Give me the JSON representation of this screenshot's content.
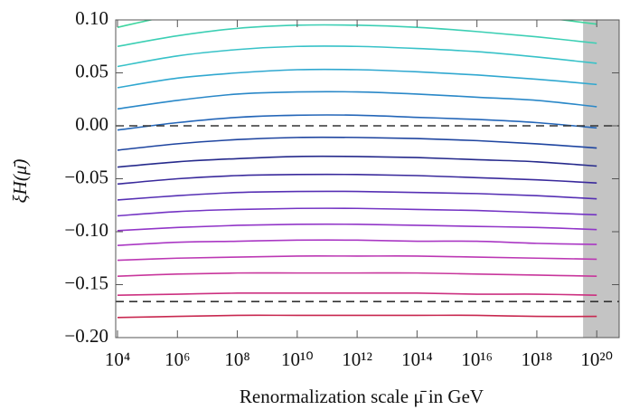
{
  "chart_data": {
    "type": "line",
    "xlabel": "Renormalization scale μ̄ in GeV",
    "ylabel": "ξH(μ̄)",
    "xscale": "log",
    "x": [
      10000.0,
      1000000.0,
      100000000.0,
      10000000000.0,
      1000000000000.0,
      100000000000000.0,
      1e+16,
      1e+18,
      1e+20
    ],
    "xlim": [
      8700,
      5.6e+20
    ],
    "xticks": [
      {
        "value": 10000.0,
        "label": "10⁴"
      },
      {
        "value": 1000000.0,
        "label": "10⁶"
      },
      {
        "value": 100000000.0,
        "label": "10⁸"
      },
      {
        "value": 10000000000.0,
        "label": "10¹⁰"
      },
      {
        "value": 1000000000000.0,
        "label": "10¹²"
      },
      {
        "value": 100000000000000.0,
        "label": "10¹⁴"
      },
      {
        "value": 1e+16,
        "label": "10¹⁶"
      },
      {
        "value": 1e+18,
        "label": "10¹⁸"
      },
      {
        "value": 1e+20,
        "label": "10²⁰"
      }
    ],
    "ylim": [
      -0.2,
      0.1
    ],
    "yticks": [
      {
        "value": 0.1,
        "label": "0.10"
      },
      {
        "value": 0.05,
        "label": "0.05"
      },
      {
        "value": 0,
        "label": "0.00"
      },
      {
        "value": -0.05,
        "label": "−0.05"
      },
      {
        "value": -0.1,
        "label": "−0.10"
      },
      {
        "value": -0.15,
        "label": "−0.15"
      },
      {
        "value": -0.2,
        "label": "−0.20"
      }
    ],
    "hlines": [
      0,
      -0.166
    ],
    "hline_color": "#333333",
    "band": [
      3.5e+19,
      5.6e+20
    ],
    "band_color": "#c4c4c4",
    "series": [
      {
        "color": "#3fd6a0",
        "values": [
          0.093,
          0.105,
          0.112,
          0.115,
          0.115,
          0.113,
          0.109,
          0.103,
          0.096
        ]
      },
      {
        "color": "#3ccfb4",
        "values": [
          0.075,
          0.085,
          0.092,
          0.095,
          0.095,
          0.093,
          0.089,
          0.084,
          0.078
        ]
      },
      {
        "color": "#38c2c8",
        "values": [
          0.056,
          0.066,
          0.072,
          0.075,
          0.075,
          0.073,
          0.07,
          0.065,
          0.059
        ]
      },
      {
        "color": "#30a8d0",
        "values": [
          0.036,
          0.045,
          0.05,
          0.053,
          0.053,
          0.051,
          0.048,
          0.044,
          0.039
        ]
      },
      {
        "color": "#2a88c8",
        "values": [
          0.016,
          0.024,
          0.03,
          0.032,
          0.032,
          0.03,
          0.027,
          0.024,
          0.018
        ]
      },
      {
        "color": "#2466b8",
        "values": [
          -0.004,
          0.003,
          0.008,
          0.01,
          0.01,
          0.008,
          0.006,
          0.003,
          -0.002
        ]
      },
      {
        "color": "#1f45a0",
        "values": [
          -0.023,
          -0.017,
          -0.013,
          -0.011,
          -0.011,
          -0.012,
          -0.014,
          -0.017,
          -0.021
        ]
      },
      {
        "color": "#262a8c",
        "values": [
          -0.039,
          -0.034,
          -0.031,
          -0.029,
          -0.029,
          -0.03,
          -0.032,
          -0.034,
          -0.038
        ]
      },
      {
        "color": "#3a2a9c",
        "values": [
          -0.055,
          -0.05,
          -0.047,
          -0.046,
          -0.046,
          -0.047,
          -0.049,
          -0.051,
          -0.054
        ]
      },
      {
        "color": "#5630b4",
        "values": [
          -0.07,
          -0.066,
          -0.063,
          -0.062,
          -0.062,
          -0.063,
          -0.064,
          -0.066,
          -0.069
        ]
      },
      {
        "color": "#7434c4",
        "values": [
          -0.085,
          -0.081,
          -0.079,
          -0.078,
          -0.078,
          -0.079,
          -0.08,
          -0.082,
          -0.084
        ]
      },
      {
        "color": "#9236c8",
        "values": [
          -0.099,
          -0.096,
          -0.094,
          -0.093,
          -0.093,
          -0.094,
          -0.095,
          -0.096,
          -0.098
        ]
      },
      {
        "color": "#aa38c4",
        "values": [
          -0.113,
          -0.11,
          -0.109,
          -0.108,
          -0.108,
          -0.109,
          -0.109,
          -0.111,
          -0.112
        ]
      },
      {
        "color": "#bc38b4",
        "values": [
          -0.127,
          -0.125,
          -0.124,
          -0.123,
          -0.123,
          -0.123,
          -0.124,
          -0.125,
          -0.126
        ]
      },
      {
        "color": "#c8369c",
        "values": [
          -0.142,
          -0.14,
          -0.139,
          -0.139,
          -0.139,
          -0.139,
          -0.14,
          -0.141,
          -0.142
        ]
      },
      {
        "color": "#cc3080",
        "values": [
          -0.16,
          -0.159,
          -0.158,
          -0.158,
          -0.158,
          -0.158,
          -0.159,
          -0.159,
          -0.16
        ]
      },
      {
        "color": "#c82850",
        "values": [
          -0.181,
          -0.18,
          -0.179,
          -0.179,
          -0.179,
          -0.179,
          -0.179,
          -0.18,
          -0.18
        ]
      }
    ]
  }
}
